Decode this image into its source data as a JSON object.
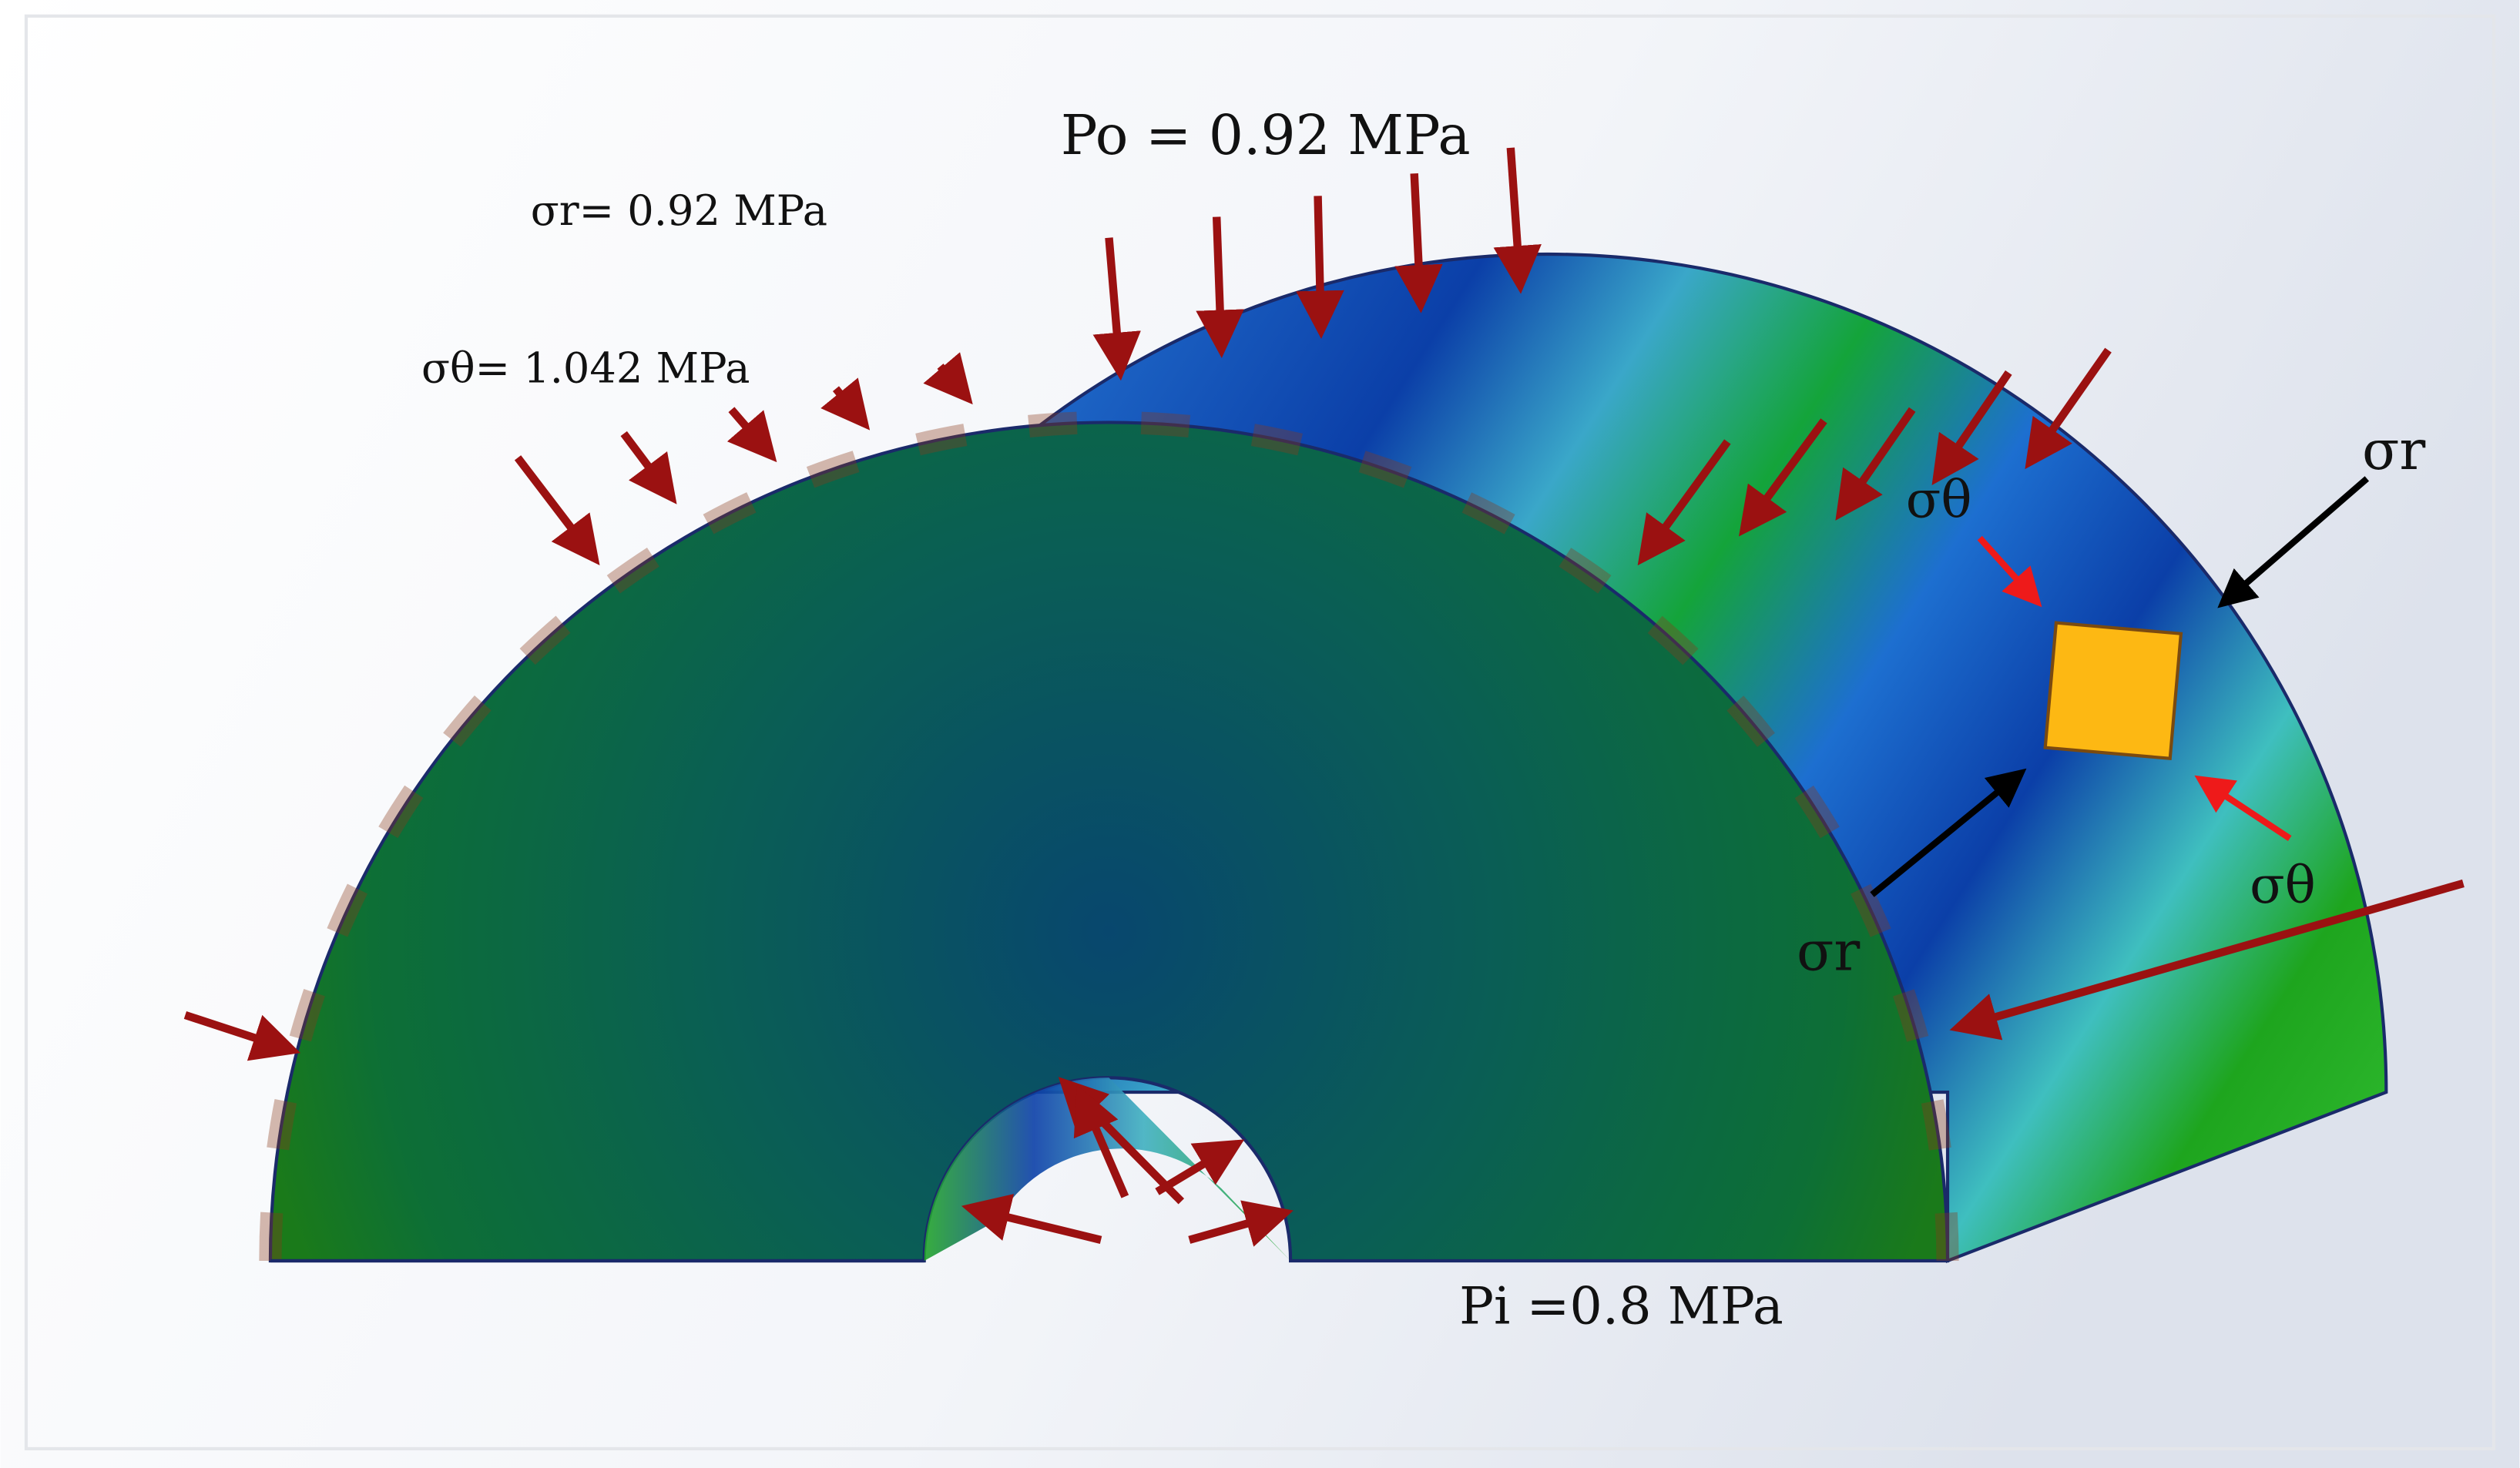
{
  "labels": {
    "outer_pressure": "Po = 0.92 MPa",
    "radial_stress": "σr= 0.92 MPa",
    "hoop_stress": "σθ= 1.042 MPa",
    "inner_pressure": "Pi =0.8 MPa",
    "element_sigma_r_outer": "σr",
    "element_sigma_theta_top": "σθ",
    "element_sigma_theta_bottom": "σθ",
    "element_sigma_r_inner": "σr"
  }
}
